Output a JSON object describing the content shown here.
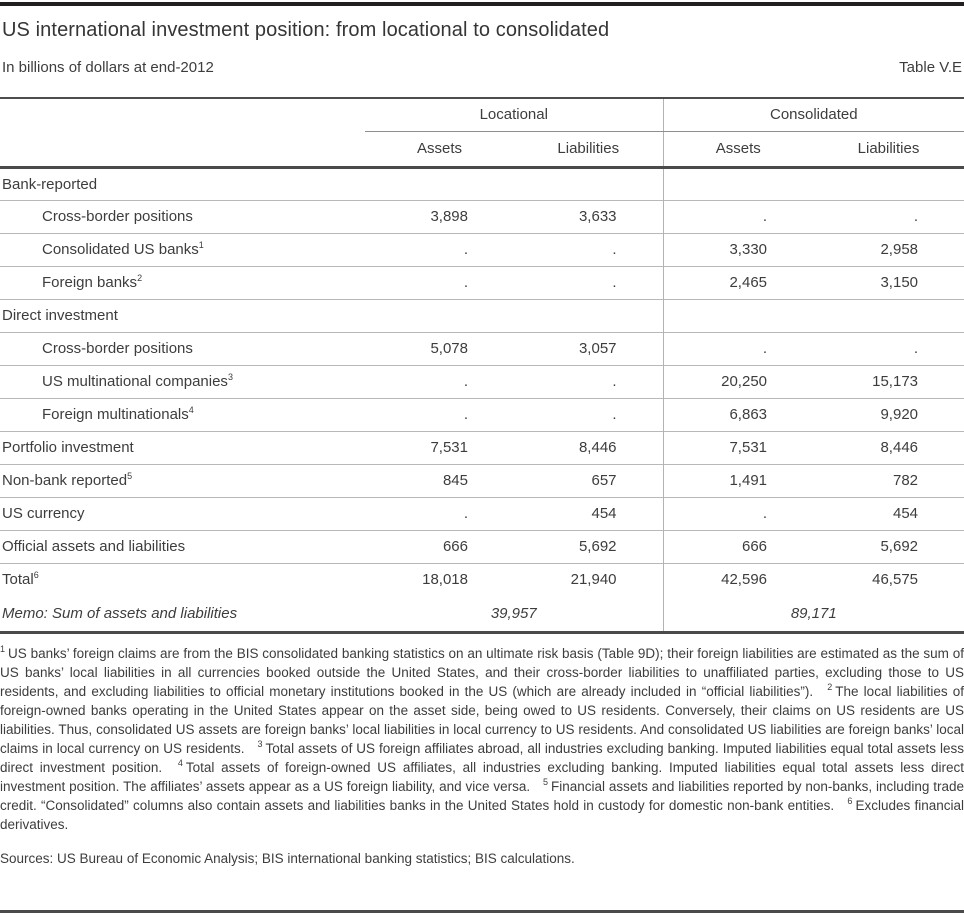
{
  "header": {
    "title": "US international investment position: from locational to consolidated",
    "subtitle": "In billions of dollars at end-2012",
    "table_label": "Table V.E"
  },
  "table": {
    "group_headers": {
      "locational": "Locational",
      "consolidated": "Consolidated"
    },
    "column_headers": {
      "assets": "Assets",
      "liabilities": "Liabilities"
    },
    "rows": [
      {
        "label": "Bank-reported",
        "sup": "",
        "indent": false,
        "section": true,
        "loc_assets": "",
        "loc_liabilities": "",
        "cons_assets": "",
        "cons_liabilities": ""
      },
      {
        "label": "Cross-border positions",
        "sup": "",
        "indent": true,
        "section": false,
        "loc_assets": "3,898",
        "loc_liabilities": "3,633",
        "cons_assets": ".",
        "cons_liabilities": "."
      },
      {
        "label": "Consolidated US banks",
        "sup": "1",
        "indent": true,
        "section": false,
        "loc_assets": ".",
        "loc_liabilities": ".",
        "cons_assets": "3,330",
        "cons_liabilities": "2,958"
      },
      {
        "label": "Foreign banks",
        "sup": "2",
        "indent": true,
        "section": false,
        "loc_assets": ".",
        "loc_liabilities": ".",
        "cons_assets": "2,465",
        "cons_liabilities": "3,150"
      },
      {
        "label": "Direct investment",
        "sup": "",
        "indent": false,
        "section": true,
        "loc_assets": "",
        "loc_liabilities": "",
        "cons_assets": "",
        "cons_liabilities": ""
      },
      {
        "label": "Cross-border positions",
        "sup": "",
        "indent": true,
        "section": false,
        "loc_assets": "5,078",
        "loc_liabilities": "3,057",
        "cons_assets": ".",
        "cons_liabilities": "."
      },
      {
        "label": "US multinational companies",
        "sup": "3",
        "indent": true,
        "section": false,
        "loc_assets": ".",
        "loc_liabilities": ".",
        "cons_assets": "20,250",
        "cons_liabilities": "15,173"
      },
      {
        "label": "Foreign multinationals",
        "sup": "4",
        "indent": true,
        "section": false,
        "loc_assets": ".",
        "loc_liabilities": ".",
        "cons_assets": "6,863",
        "cons_liabilities": "9,920"
      },
      {
        "label": "Portfolio investment",
        "sup": "",
        "indent": false,
        "section": false,
        "loc_assets": "7,531",
        "loc_liabilities": "8,446",
        "cons_assets": "7,531",
        "cons_liabilities": "8,446"
      },
      {
        "label": "Non-bank reported",
        "sup": "5",
        "indent": false,
        "section": false,
        "loc_assets": "845",
        "loc_liabilities": "657",
        "cons_assets": "1,491",
        "cons_liabilities": "782"
      },
      {
        "label": "US currency",
        "sup": "",
        "indent": false,
        "section": false,
        "loc_assets": ".",
        "loc_liabilities": "454",
        "cons_assets": ".",
        "cons_liabilities": "454"
      },
      {
        "label": "Official assets and liabilities",
        "sup": "",
        "indent": false,
        "section": false,
        "loc_assets": "666",
        "loc_liabilities": "5,692",
        "cons_assets": "666",
        "cons_liabilities": "5,692"
      },
      {
        "label": "Total",
        "sup": "6",
        "indent": false,
        "section": false,
        "loc_assets": "18,018",
        "loc_liabilities": "21,940",
        "cons_assets": "42,596",
        "cons_liabilities": "46,575"
      }
    ],
    "memo": {
      "label": "Memo: Sum of assets and liabilities",
      "locational": "39,957",
      "consolidated": "89,171"
    }
  },
  "footnotes": [
    {
      "marker": "1",
      "text": "US banks’ foreign claims are from the BIS consolidated banking statistics on an ultimate risk basis (Table 9D); their foreign liabilities are estimated as the sum of US banks’ local liabilities in all currencies booked outside the United States, and their cross-border liabilities to unaffiliated parties, excluding those to US residents, and excluding liabilities to official monetary institutions booked in the US (which are already included in “official liabilities”)."
    },
    {
      "marker": "2",
      "text": "The local liabilities of foreign-owned banks operating in the United States appear on the asset side, being owed to US residents. Conversely, their claims on US residents are US liabilities. Thus, consolidated US assets are foreign banks’ local liabilities in local currency to US residents. And consolidated US liabilities are foreign banks’ local claims in local currency on US residents."
    },
    {
      "marker": "3",
      "text": "Total assets of US foreign affiliates abroad, all industries excluding banking. Imputed liabilities equal total assets less direct investment position."
    },
    {
      "marker": "4",
      "text": "Total assets of foreign-owned US affiliates, all industries excluding banking. Imputed liabilities equal total assets less direct investment position. The affiliates’ assets appear as a US foreign liability, and vice versa."
    },
    {
      "marker": "5",
      "text": "Financial assets and liabilities reported by non-banks, including trade credit. “Consolidated” columns also contain assets and liabilities banks in the United States hold in custody for domestic non-bank entities."
    },
    {
      "marker": "6",
      "text": "Excludes financial derivatives."
    }
  ],
  "sources": "Sources: US Bureau of Economic Analysis; BIS international banking statistics; BIS calculations."
}
